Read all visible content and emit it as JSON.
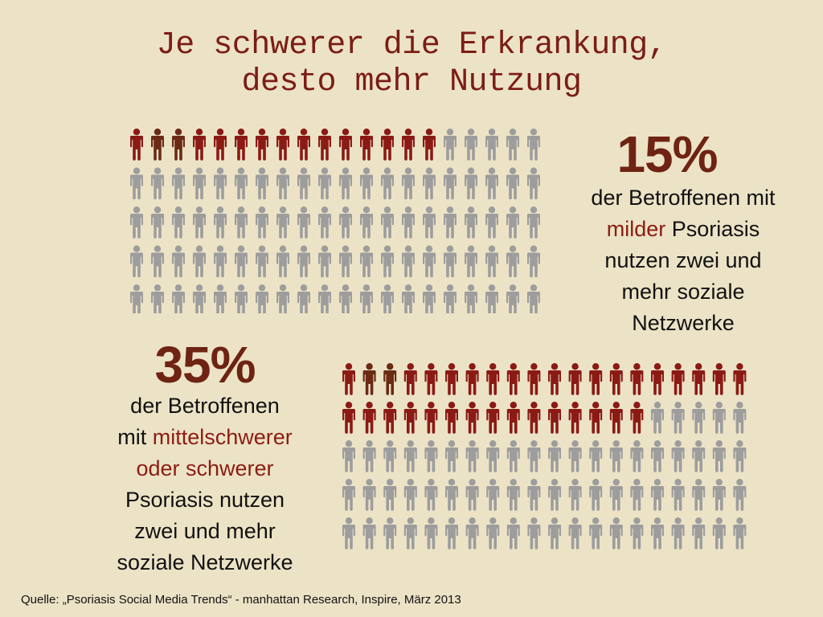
{
  "title": {
    "line1": "Je schwerer die Erkrankung,",
    "line2": "desto mehr Nutzung"
  },
  "chart_data": [
    {
      "type": "pictogram",
      "total": 100,
      "value_percent": 15,
      "highlighted_count": 15,
      "label": "15%",
      "description": {
        "line1": "der Betroffenen mit",
        "line2_highlight": "milder",
        "line2_rest": " Psoriasis",
        "line3": "nutzen zwei und",
        "line4": "mehr soziale",
        "line5": "Netzwerke"
      }
    },
    {
      "type": "pictogram",
      "total": 100,
      "value_percent": 35,
      "highlighted_count": 35,
      "label": "35%",
      "description": {
        "line1": "der Betroffenen",
        "line2_prefix": "mit ",
        "line2_highlight": "mittelschwerer",
        "line3_highlight": "oder schwerer",
        "line4": "Psoriasis nutzen",
        "line5": "zwei und mehr",
        "line6": "soziale Netzwerke"
      }
    }
  ],
  "colors": {
    "highlight": "#8b1a15",
    "highlight_alt": "#6a2a14",
    "muted": "#9d9d9d",
    "background": "#ece3c6",
    "number": "#6e2313"
  },
  "source": "Quelle: „Psoriasis Social Media Trends“ - manhattan Research, Inspire, März 2013"
}
